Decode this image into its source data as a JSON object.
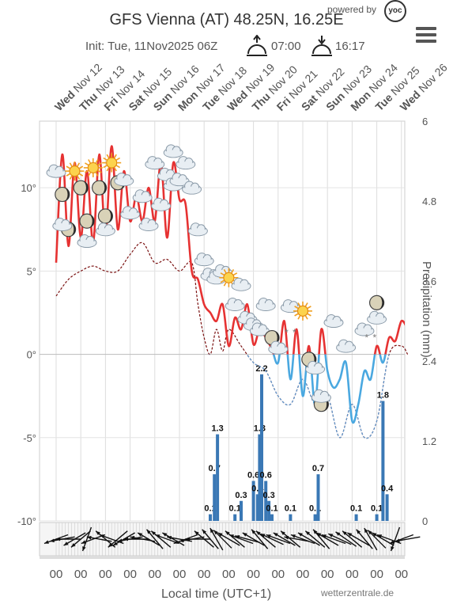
{
  "header": {
    "title": "GFS Vienna (AT) 48.25N, 16.25E",
    "init": "Init: Tue, 11Nov2025 06Z",
    "sunrise": "07:00",
    "sunset": "16:17",
    "powered_by": "powered by",
    "brand": "yoc",
    "credit": "wetterzentrale.de"
  },
  "chart_data": {
    "type": "line",
    "xlabel": "Local time (UTC+1)",
    "ylabel": "",
    "y2label": "Precipitation (mm)",
    "days": [
      {
        "dow": "Wed",
        "date": "Nov 12"
      },
      {
        "dow": "Thu",
        "date": "Nov 13"
      },
      {
        "dow": "Fri",
        "date": "Nov 14"
      },
      {
        "dow": "Sat",
        "date": "Nov 15"
      },
      {
        "dow": "Sun",
        "date": "Nov 16"
      },
      {
        "dow": "Mon",
        "date": "Nov 17"
      },
      {
        "dow": "Tue",
        "date": "Nov 18"
      },
      {
        "dow": "Wed",
        "date": "Nov 19"
      },
      {
        "dow": "Thu",
        "date": "Nov 20"
      },
      {
        "dow": "Fri",
        "date": "Nov 21"
      },
      {
        "dow": "Sat",
        "date": "Nov 22"
      },
      {
        "dow": "Sun",
        "date": "Nov 23"
      },
      {
        "dow": "Mon",
        "date": "Nov 24"
      },
      {
        "dow": "Tue",
        "date": "Nov 25"
      },
      {
        "dow": "Wed",
        "date": "Nov 26"
      }
    ],
    "x_tick_label": "00",
    "temp_axis": {
      "ticks": [
        {
          "v": 10,
          "t": "10°"
        },
        {
          "v": 5,
          "t": "5°"
        },
        {
          "v": 0,
          "t": "0°"
        },
        {
          "v": -5,
          "t": "-5°"
        },
        {
          "v": -10,
          "t": "-10°"
        }
      ],
      "range": [
        -10,
        14
      ]
    },
    "precip_axis": {
      "ticks": [
        {
          "v": 6,
          "t": "6"
        },
        {
          "v": 4.8,
          "t": "4.8"
        },
        {
          "v": 3.6,
          "t": "3.6"
        },
        {
          "v": 2.4,
          "t": "2.4"
        },
        {
          "v": 1.2,
          "t": "1.2"
        },
        {
          "v": 0,
          "t": "0"
        }
      ],
      "range": [
        0,
        6
      ]
    },
    "series": [
      {
        "key": "temperature",
        "hours": [
          0,
          6,
          12,
          18,
          24,
          30,
          36,
          42,
          48,
          54,
          60,
          66,
          72,
          78,
          84,
          90,
          96,
          102,
          108,
          114,
          120,
          126,
          132,
          138,
          144,
          150,
          156,
          162,
          168,
          174,
          180,
          186,
          192,
          198,
          204,
          210,
          216,
          222,
          228,
          234,
          240,
          246,
          252,
          258,
          264,
          270,
          276,
          282,
          288,
          294,
          300,
          306,
          312,
          318,
          324,
          330,
          336,
          342
        ],
        "values": [
          5.5,
          12,
          6.5,
          11.5,
          7,
          11,
          6.7,
          12,
          7.2,
          12.5,
          7.5,
          11,
          8,
          9.5,
          8,
          10,
          8,
          11.5,
          7,
          11.5,
          9.3,
          9,
          5,
          4.5,
          3,
          2.5,
          2,
          3,
          0.5,
          2.2,
          1.5,
          3,
          0.6,
          1.5,
          1,
          0.3,
          -0.5,
          2,
          -1.5,
          1.5,
          -2.5,
          0.5,
          -3,
          1.5,
          -1,
          -2,
          -1.5,
          -0.5,
          -4,
          -3,
          -1,
          -1.5,
          0.5,
          -0.5,
          1,
          0.8,
          2,
          1.5
        ]
      },
      {
        "key": "dewpoint",
        "hours": [
          0,
          12,
          24,
          36,
          48,
          60,
          72,
          84,
          96,
          108,
          120,
          132,
          138,
          144,
          150,
          156,
          162,
          168,
          180,
          192,
          204,
          216,
          228,
          240,
          252,
          264,
          276,
          288,
          300,
          312,
          324,
          336,
          342
        ],
        "values": [
          3.5,
          4.5,
          5,
          5.3,
          5,
          5,
          6,
          6.7,
          5.5,
          5.7,
          5,
          5.5,
          3,
          1,
          0,
          1.5,
          0.2,
          1.5,
          0.5,
          -0.5,
          -1,
          -2.5,
          -3,
          -1.5,
          -3,
          -2.5,
          -5,
          -3,
          -5,
          -4,
          0,
          0.5,
          0
        ]
      }
    ],
    "precipitation": [
      {
        "h": 150,
        "v": 0.1,
        "label": "0.1"
      },
      {
        "h": 154,
        "v": 0.7,
        "label": "0.7"
      },
      {
        "h": 157,
        "v": 1.3,
        "label": "1.3"
      },
      {
        "h": 174,
        "v": 0.1,
        "label": "0.1"
      },
      {
        "h": 180,
        "v": 0.3,
        "label": "0.3"
      },
      {
        "h": 192,
        "v": 0.6,
        "label": "0.6"
      },
      {
        "h": 196,
        "v": 0.4,
        "label": "0.4"
      },
      {
        "h": 198,
        "v": 1.3,
        "label": "1.3"
      },
      {
        "h": 200,
        "v": 2.2,
        "label": "2.2"
      },
      {
        "h": 204,
        "v": 0.6,
        "label": "0.6"
      },
      {
        "h": 207,
        "v": 0.3,
        "label": "0.3"
      },
      {
        "h": 210,
        "v": 0.1,
        "label": "0.1"
      },
      {
        "h": 228,
        "v": 0.1,
        "label": "0.1"
      },
      {
        "h": 252,
        "v": 0.1,
        "label": "0.1"
      },
      {
        "h": 255,
        "v": 0.7,
        "label": "0.7"
      },
      {
        "h": 292,
        "v": 0.1,
        "label": "0.1"
      },
      {
        "h": 312,
        "v": 0.1,
        "label": "0.1"
      },
      {
        "h": 318,
        "v": 1.8,
        "label": "1.8"
      },
      {
        "h": 322,
        "v": 0.4,
        "label": "0.4"
      }
    ],
    "weather_icons": [
      {
        "h": 0,
        "t": 11,
        "k": "cloud"
      },
      {
        "h": 18,
        "t": 11,
        "k": "sun"
      },
      {
        "h": 36,
        "t": 11.2,
        "k": "sun"
      },
      {
        "h": 54,
        "t": 11.5,
        "k": "sun"
      },
      {
        "h": 6,
        "t": 9.6,
        "k": "moon"
      },
      {
        "h": 24,
        "t": 10,
        "k": "moon"
      },
      {
        "h": 42,
        "t": 10,
        "k": "moon"
      },
      {
        "h": 60,
        "t": 10.3,
        "k": "moon"
      },
      {
        "h": 12,
        "t": 7.5,
        "k": "moon"
      },
      {
        "h": 30,
        "t": 8,
        "k": "moon"
      },
      {
        "h": 48,
        "t": 8.3,
        "k": "moon"
      },
      {
        "h": 6,
        "t": 7.8,
        "k": "cloud"
      },
      {
        "h": 30,
        "t": 6.8,
        "k": "cloud"
      },
      {
        "h": 48,
        "t": 7.5,
        "k": "cloud"
      },
      {
        "h": 66,
        "t": 10.5,
        "k": "cloud"
      },
      {
        "h": 72,
        "t": 8.5,
        "k": "cloud"
      },
      {
        "h": 84,
        "t": 9.5,
        "k": "cloud"
      },
      {
        "h": 90,
        "t": 7.8,
        "k": "cloud"
      },
      {
        "h": 96,
        "t": 11.5,
        "k": "cloud"
      },
      {
        "h": 102,
        "t": 9,
        "k": "cloud"
      },
      {
        "h": 108,
        "t": 10.8,
        "k": "cloud"
      },
      {
        "h": 114,
        "t": 10.2,
        "k": "cloud"
      },
      {
        "h": 114,
        "t": 12.2,
        "k": "cloud"
      },
      {
        "h": 120,
        "t": 10.5,
        "k": "cloud"
      },
      {
        "h": 126,
        "t": 11.5,
        "k": "cloud"
      },
      {
        "h": 132,
        "t": 10,
        "k": "cloud"
      },
      {
        "h": 138,
        "t": 7.5,
        "k": "cloud"
      },
      {
        "h": 144,
        "t": 5.7,
        "k": "cloud"
      },
      {
        "h": 150,
        "t": 4.8,
        "k": "cloud"
      },
      {
        "h": 156,
        "t": 4.6,
        "k": "cloud"
      },
      {
        "h": 162,
        "t": 5,
        "k": "cloud"
      },
      {
        "h": 168,
        "t": 4.6,
        "k": "sun"
      },
      {
        "h": 174,
        "t": 3,
        "k": "cloud"
      },
      {
        "h": 180,
        "t": 4.2,
        "k": "cloud"
      },
      {
        "h": 186,
        "t": 2.2,
        "k": "cloud"
      },
      {
        "h": 192,
        "t": 1.8,
        "k": "cloud"
      },
      {
        "h": 198,
        "t": 1.5,
        "k": "cloud"
      },
      {
        "h": 204,
        "t": 3,
        "k": "cloud"
      },
      {
        "h": 210,
        "t": 1,
        "k": "moon"
      },
      {
        "h": 216,
        "t": 0.4,
        "k": "cloud"
      },
      {
        "h": 228,
        "t": 2.9,
        "k": "cloud"
      },
      {
        "h": 228,
        "t": 1.3,
        "k": "snow"
      },
      {
        "h": 240,
        "t": 2.6,
        "k": "sun"
      },
      {
        "h": 246,
        "t": -0.3,
        "k": "moon"
      },
      {
        "h": 252,
        "t": -0.8,
        "k": "cloud"
      },
      {
        "h": 258,
        "t": -3,
        "k": "moon"
      },
      {
        "h": 258,
        "t": -2.5,
        "k": "cloud"
      },
      {
        "h": 270,
        "t": 2,
        "k": "cloud"
      },
      {
        "h": 282,
        "t": 0.5,
        "k": "cloud"
      },
      {
        "h": 300,
        "t": 1.5,
        "k": "cloud"
      },
      {
        "h": 306,
        "t": 1,
        "k": "snow"
      },
      {
        "h": 312,
        "t": 3.1,
        "k": "moon"
      },
      {
        "h": 312,
        "t": 2.2,
        "k": "cloud"
      }
    ],
    "wind_dirs": [
      250,
      260,
      270,
      240,
      230,
      200,
      250,
      280,
      310,
      290,
      230,
      240,
      260,
      270,
      280,
      300,
      320,
      310,
      290,
      300,
      280,
      250,
      260,
      270,
      310,
      320,
      330,
      315,
      300,
      310,
      290,
      285,
      300,
      320,
      310,
      295,
      290,
      300,
      310,
      280,
      290,
      300,
      310,
      320,
      300,
      290,
      295,
      305,
      310,
      300,
      320,
      330,
      315,
      300,
      290,
      200,
      250,
      260
    ]
  }
}
